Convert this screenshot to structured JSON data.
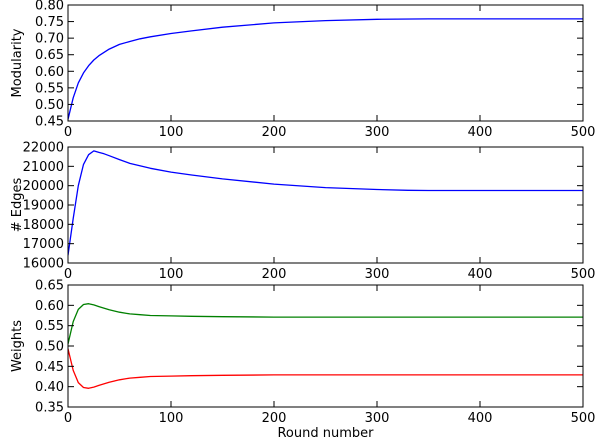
{
  "chart_data": [
    {
      "type": "line",
      "title": "",
      "xlabel": "",
      "ylabel": "Modularity",
      "xlim": [
        0,
        500
      ],
      "ylim": [
        0.45,
        0.8
      ],
      "xticks": [
        0,
        100,
        200,
        300,
        400,
        500
      ],
      "xtick_labels": [
        "0",
        "100",
        "200",
        "300",
        "400",
        "500"
      ],
      "yticks": [
        0.45,
        0.5,
        0.55,
        0.6,
        0.65,
        0.7,
        0.75,
        0.8
      ],
      "ytick_labels": [
        "0.45",
        "0.50",
        "0.55",
        "0.60",
        "0.65",
        "0.70",
        "0.75",
        "0.80"
      ],
      "grid": false,
      "series": [
        {
          "color": "#0000ff",
          "x": [
            0,
            5,
            10,
            15,
            20,
            25,
            30,
            40,
            50,
            60,
            70,
            80,
            100,
            120,
            150,
            200,
            250,
            300,
            350,
            400,
            450,
            500
          ],
          "y": [
            0.455,
            0.52,
            0.565,
            0.595,
            0.617,
            0.634,
            0.647,
            0.667,
            0.681,
            0.69,
            0.698,
            0.704,
            0.714,
            0.722,
            0.733,
            0.746,
            0.753,
            0.757,
            0.758,
            0.758,
            0.758,
            0.758
          ]
        }
      ]
    },
    {
      "type": "line",
      "title": "",
      "xlabel": "",
      "ylabel": "# Edges",
      "xlim": [
        0,
        500
      ],
      "ylim": [
        16000,
        22000
      ],
      "xticks": [
        0,
        100,
        200,
        300,
        400,
        500
      ],
      "xtick_labels": [
        "0",
        "100",
        "200",
        "300",
        "400",
        "500"
      ],
      "yticks": [
        16000,
        17000,
        18000,
        19000,
        20000,
        21000,
        22000
      ],
      "ytick_labels": [
        "16000",
        "17000",
        "18000",
        "19000",
        "20000",
        "21000",
        "22000"
      ],
      "grid": false,
      "series": [
        {
          "color": "#0000ff",
          "x": [
            0,
            5,
            10,
            15,
            20,
            25,
            30,
            35,
            40,
            50,
            60,
            80,
            100,
            120,
            150,
            200,
            250,
            300,
            330,
            350,
            400,
            450,
            500
          ],
          "y": [
            16400,
            18300,
            20000,
            21100,
            21600,
            21800,
            21720,
            21650,
            21550,
            21350,
            21150,
            20900,
            20700,
            20550,
            20350,
            20080,
            19900,
            19800,
            19760,
            19750,
            19750,
            19750,
            19750
          ]
        }
      ]
    },
    {
      "type": "line",
      "title": "",
      "xlabel": "Round number",
      "ylabel": "Weights",
      "xlim": [
        0,
        500
      ],
      "ylim": [
        0.35,
        0.65
      ],
      "xticks": [
        0,
        100,
        200,
        300,
        400,
        500
      ],
      "xtick_labels": [
        "0",
        "100",
        "200",
        "300",
        "400",
        "500"
      ],
      "yticks": [
        0.35,
        0.4,
        0.45,
        0.5,
        0.55,
        0.6,
        0.65
      ],
      "ytick_labels": [
        "0.35",
        "0.40",
        "0.45",
        "0.50",
        "0.55",
        "0.60",
        "0.65"
      ],
      "grid": false,
      "series": [
        {
          "color": "#008000",
          "x": [
            0,
            5,
            10,
            15,
            20,
            25,
            30,
            40,
            50,
            60,
            70,
            80,
            100,
            120,
            150,
            200,
            250,
            300,
            400,
            500
          ],
          "y": [
            0.505,
            0.56,
            0.59,
            0.602,
            0.604,
            0.601,
            0.597,
            0.589,
            0.583,
            0.579,
            0.577,
            0.575,
            0.574,
            0.573,
            0.572,
            0.571,
            0.571,
            0.571,
            0.571,
            0.571
          ]
        },
        {
          "color": "#ff0000",
          "x": [
            0,
            5,
            10,
            15,
            20,
            25,
            30,
            40,
            50,
            60,
            70,
            80,
            100,
            120,
            150,
            200,
            250,
            300,
            400,
            500
          ],
          "y": [
            0.493,
            0.44,
            0.41,
            0.398,
            0.396,
            0.399,
            0.403,
            0.411,
            0.417,
            0.421,
            0.423,
            0.425,
            0.426,
            0.427,
            0.428,
            0.429,
            0.429,
            0.429,
            0.429,
            0.429
          ]
        }
      ]
    }
  ]
}
